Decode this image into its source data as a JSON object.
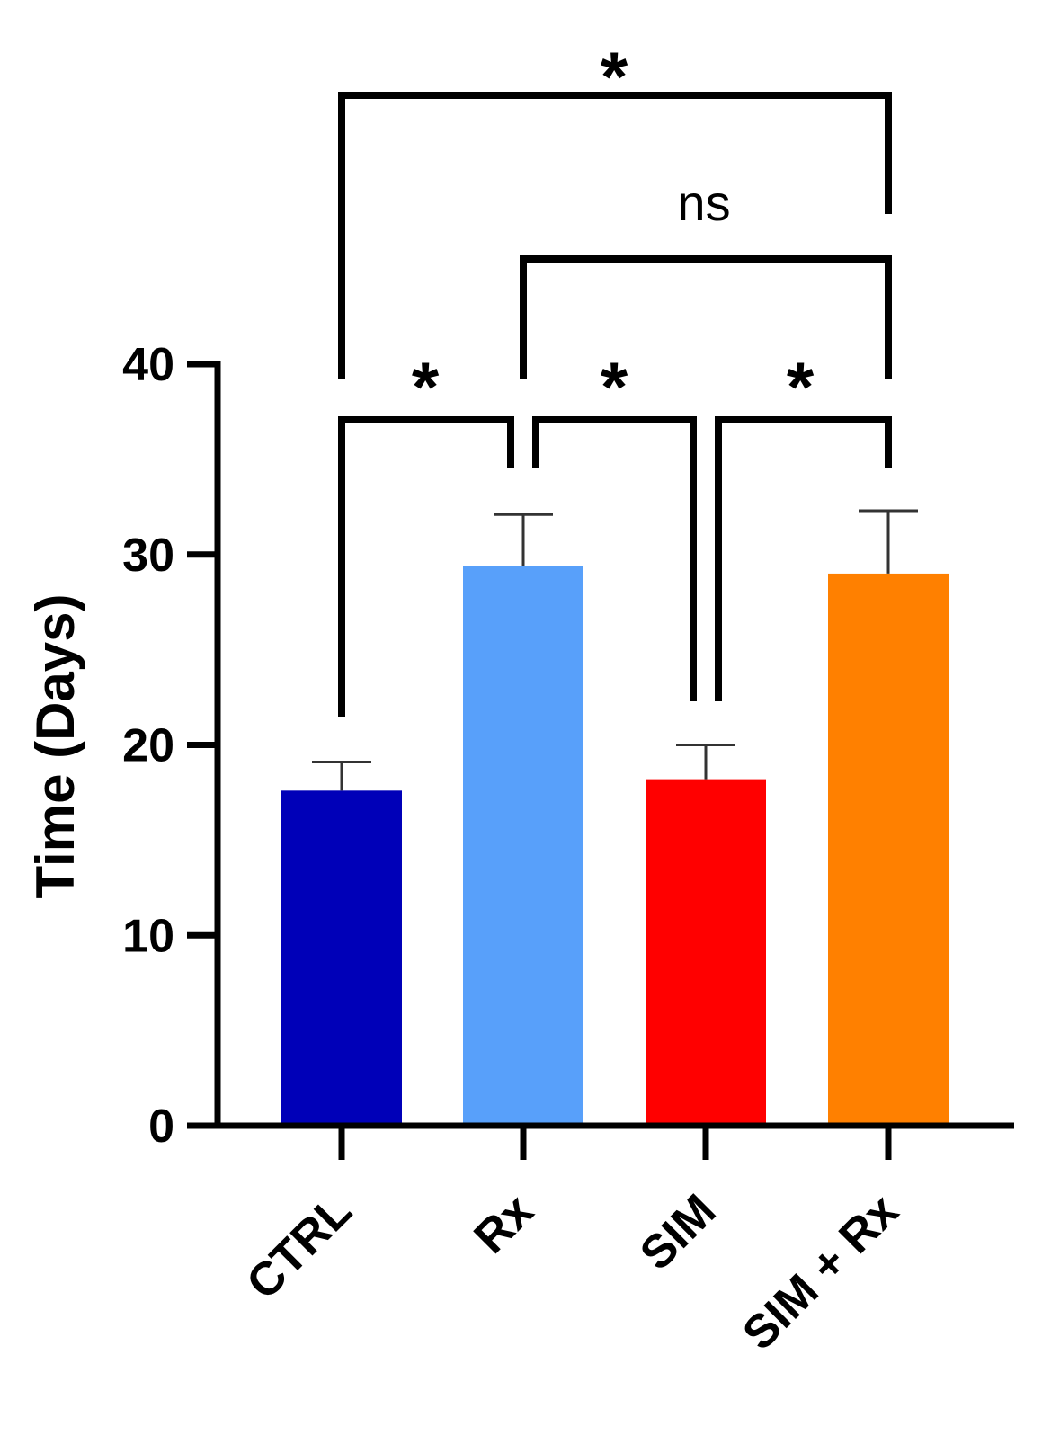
{
  "chart_data": {
    "type": "bar",
    "title": "",
    "xlabel": "",
    "ylabel": "Time (Days)",
    "ylim": [
      0,
      40
    ],
    "yticks": [
      0,
      10,
      20,
      30,
      40
    ],
    "yticks_text": [
      "0",
      "10",
      "20",
      "30",
      "40"
    ],
    "categories": [
      "CTRL",
      "Rx",
      "SIM",
      "SIM + Rx"
    ],
    "values": [
      17.6,
      29.4,
      18.2,
      29.0
    ],
    "errors": [
      1.5,
      2.7,
      1.8,
      3.3
    ],
    "colors": [
      "#0000b8",
      "#58a0fa",
      "#ff0000",
      "#ff8000"
    ],
    "comparisons": [
      {
        "groups": [
          0,
          1
        ],
        "label": "*"
      },
      {
        "groups": [
          1,
          2
        ],
        "label": "*"
      },
      {
        "groups": [
          2,
          3
        ],
        "label": "*"
      },
      {
        "groups": [
          1,
          3
        ],
        "label": "ns"
      },
      {
        "groups": [
          0,
          3
        ],
        "label": "*"
      }
    ]
  }
}
